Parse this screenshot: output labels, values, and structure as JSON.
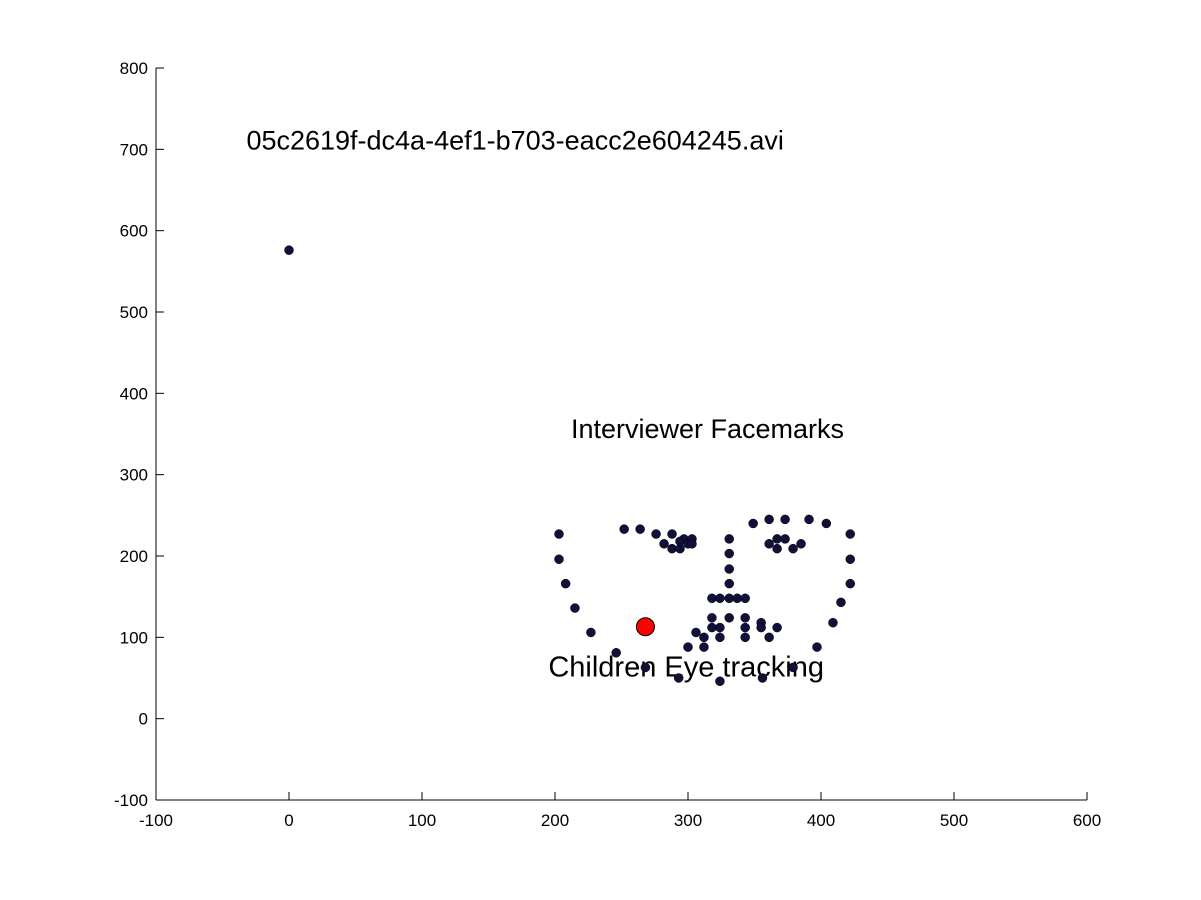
{
  "chart_data": {
    "type": "scatter",
    "title": "",
    "xlabel": "",
    "ylabel": "",
    "xlim": [
      -100,
      600
    ],
    "ylim": [
      -100,
      800
    ],
    "xticks": [
      -100,
      0,
      100,
      200,
      300,
      400,
      500,
      600
    ],
    "yticks": [
      -100,
      0,
      100,
      200,
      300,
      400,
      500,
      600,
      700,
      800
    ],
    "xtick_labels": [
      "-100",
      "0",
      "100",
      "200",
      "300",
      "400",
      "500",
      "600"
    ],
    "ytick_labels": [
      "-100",
      "0",
      "100",
      "200",
      "300",
      "400",
      "500",
      "600",
      "700",
      "800"
    ],
    "grid": false,
    "annotations": [
      {
        "text": "05c2619f-dc4a-4ef1-b703-eacc2e604245.avi",
        "x": -32,
        "y": 700
      },
      {
        "text": "Interviewer Facemarks",
        "x": 212,
        "y": 345
      },
      {
        "text": "Children Eye tracking",
        "x": 195,
        "y": 52
      }
    ],
    "series": [
      {
        "marker_color": "#10103a",
        "points": [
          [
            0,
            576
          ],
          [
            203,
            227
          ],
          [
            203,
            196
          ],
          [
            208,
            166
          ],
          [
            215,
            136
          ],
          [
            227,
            106
          ],
          [
            246,
            81
          ],
          [
            268,
            63
          ],
          [
            293,
            50
          ],
          [
            324,
            46
          ],
          [
            356,
            50
          ],
          [
            379,
            63
          ],
          [
            397,
            88
          ],
          [
            409,
            118
          ],
          [
            415,
            143
          ],
          [
            422,
            166
          ],
          [
            422,
            196
          ],
          [
            422,
            227
          ],
          [
            252,
            233
          ],
          [
            264,
            233
          ],
          [
            276,
            227
          ],
          [
            288,
            227
          ],
          [
            297,
            221
          ],
          [
            349,
            240
          ],
          [
            361,
            245
          ],
          [
            373,
            245
          ],
          [
            391,
            245
          ],
          [
            404,
            240
          ],
          [
            331,
            221
          ],
          [
            331,
            203
          ],
          [
            331,
            184
          ],
          [
            331,
            166
          ],
          [
            318,
            148
          ],
          [
            324,
            148
          ],
          [
            331,
            148
          ],
          [
            337,
            148
          ],
          [
            343,
            148
          ],
          [
            282,
            215
          ],
          [
            288,
            209
          ],
          [
            294,
            209
          ],
          [
            294,
            218
          ],
          [
            300,
            215
          ],
          [
            303,
            221
          ],
          [
            303,
            215
          ],
          [
            361,
            215
          ],
          [
            367,
            209
          ],
          [
            367,
            221
          ],
          [
            373,
            221
          ],
          [
            379,
            209
          ],
          [
            385,
            215
          ],
          [
            300,
            88
          ],
          [
            306,
            106
          ],
          [
            312,
            100
          ],
          [
            312,
            88
          ],
          [
            318,
            112
          ],
          [
            318,
            124
          ],
          [
            324,
            112
          ],
          [
            324,
            100
          ],
          [
            331,
            124
          ],
          [
            343,
            124
          ],
          [
            343,
            112
          ],
          [
            343,
            100
          ],
          [
            355,
            118
          ],
          [
            355,
            112
          ],
          [
            361,
            100
          ],
          [
            367,
            112
          ]
        ]
      },
      {
        "marker_color": "#ff0000",
        "points": [
          [
            268,
            113
          ]
        ]
      }
    ]
  }
}
